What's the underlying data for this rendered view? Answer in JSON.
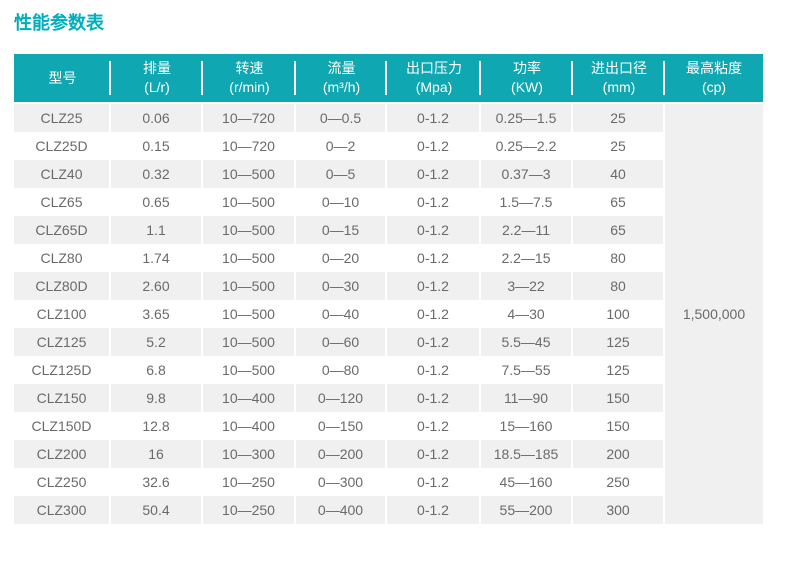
{
  "page": {
    "title": "性能参数表"
  },
  "colors": {
    "header_bg": "#0fa7b1",
    "title": "#00aebc",
    "stripe": "#f0f0f0",
    "text": "#6a6a6a"
  },
  "table": {
    "columns": [
      {
        "label": "型号",
        "unit": ""
      },
      {
        "label": "排量",
        "unit": "(L/r)"
      },
      {
        "label": "转速",
        "unit": "(r/min)"
      },
      {
        "label": "流量",
        "unit": "(m³/h)"
      },
      {
        "label": "出口压力",
        "unit": "(Mpa)"
      },
      {
        "label": "功率",
        "unit": "(KW)"
      },
      {
        "label": "进出口径",
        "unit": "(mm)"
      },
      {
        "label": "最高粘度",
        "unit": "(cp)"
      }
    ],
    "rows": [
      {
        "model": "CLZ25",
        "displacement": "0.06",
        "speed": "10—720",
        "flow": "0—0.5",
        "pressure": "0-1.2",
        "power": "0.25—1.5",
        "diameter": "25"
      },
      {
        "model": "CLZ25D",
        "displacement": "0.15",
        "speed": "10—720",
        "flow": "0—2",
        "pressure": "0-1.2",
        "power": "0.25—2.2",
        "diameter": "25"
      },
      {
        "model": "CLZ40",
        "displacement": "0.32",
        "speed": "10—500",
        "flow": "0—5",
        "pressure": "0-1.2",
        "power": "0.37—3",
        "diameter": "40"
      },
      {
        "model": "CLZ65",
        "displacement": "0.65",
        "speed": "10—500",
        "flow": "0—10",
        "pressure": "0-1.2",
        "power": "1.5—7.5",
        "diameter": "65"
      },
      {
        "model": "CLZ65D",
        "displacement": "1.1",
        "speed": "10—500",
        "flow": "0—15",
        "pressure": "0-1.2",
        "power": "2.2—11",
        "diameter": "65"
      },
      {
        "model": "CLZ80",
        "displacement": "1.74",
        "speed": "10—500",
        "flow": "0—20",
        "pressure": "0-1.2",
        "power": "2.2—15",
        "diameter": "80"
      },
      {
        "model": "CLZ80D",
        "displacement": "2.60",
        "speed": "10—500",
        "flow": "0—30",
        "pressure": "0-1.2",
        "power": "3—22",
        "diameter": "80"
      },
      {
        "model": "CLZ100",
        "displacement": "3.65",
        "speed": "10—500",
        "flow": "0—40",
        "pressure": "0-1.2",
        "power": "4—30",
        "diameter": "100"
      },
      {
        "model": "CLZ125",
        "displacement": "5.2",
        "speed": "10—500",
        "flow": "0—60",
        "pressure": "0-1.2",
        "power": "5.5—45",
        "diameter": "125"
      },
      {
        "model": "CLZ125D",
        "displacement": "6.8",
        "speed": "10—500",
        "flow": "0—80",
        "pressure": "0-1.2",
        "power": "7.5—55",
        "diameter": "125"
      },
      {
        "model": "CLZ150",
        "displacement": "9.8",
        "speed": "10—400",
        "flow": "0—120",
        "pressure": "0-1.2",
        "power": "11—90",
        "diameter": "150"
      },
      {
        "model": "CLZ150D",
        "displacement": "12.8",
        "speed": "10—400",
        "flow": "0—150",
        "pressure": "0-1.2",
        "power": "15—160",
        "diameter": "150"
      },
      {
        "model": "CLZ200",
        "displacement": "16",
        "speed": "10—300",
        "flow": "0—200",
        "pressure": "0-1.2",
        "power": "18.5—185",
        "diameter": "200"
      },
      {
        "model": "CLZ250",
        "displacement": "32.6",
        "speed": "10—250",
        "flow": "0—300",
        "pressure": "0-1.2",
        "power": "45—160",
        "diameter": "250"
      },
      {
        "model": "CLZ300",
        "displacement": "50.4",
        "speed": "10—250",
        "flow": "0—400",
        "pressure": "0-1.2",
        "power": "55—200",
        "diameter": "300"
      }
    ],
    "max_viscosity": "1,500,000"
  }
}
